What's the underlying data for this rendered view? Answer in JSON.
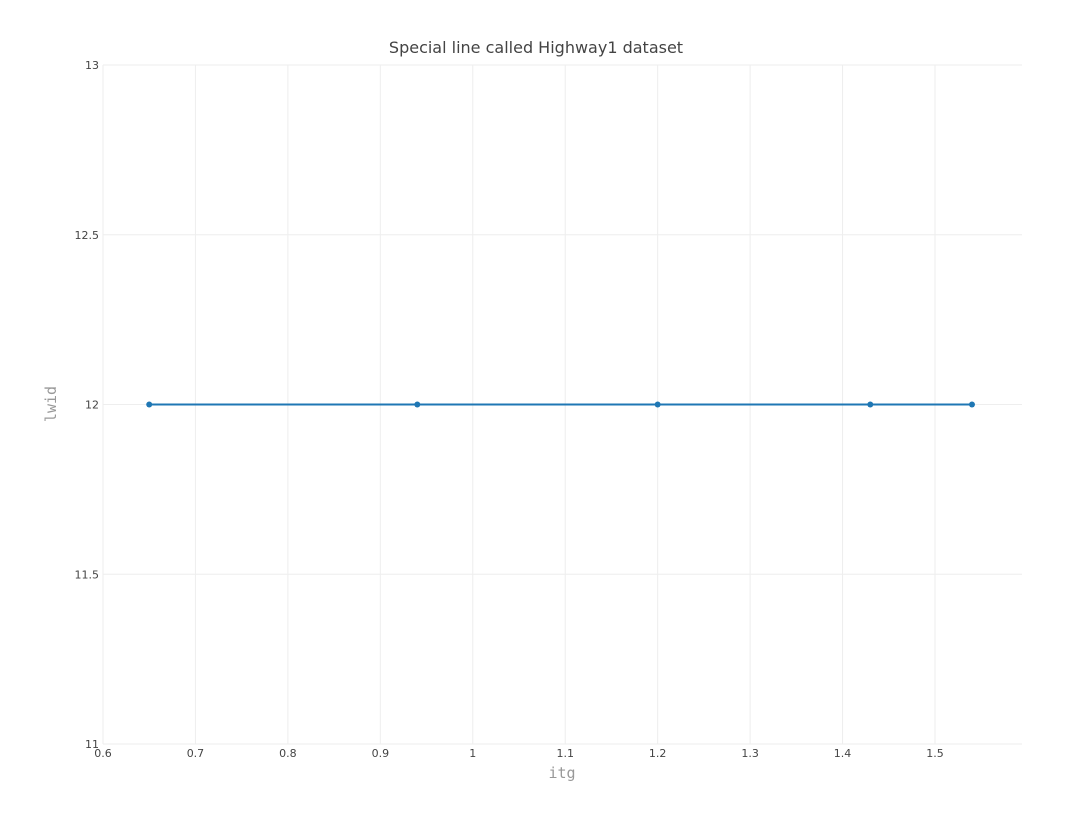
{
  "chart_data": {
    "type": "line",
    "title": "Special line called Highway1 dataset",
    "xlabel": "itg",
    "ylabel": "lwid",
    "xlim": [
      0.6,
      1.6
    ],
    "ylim": [
      11,
      13
    ],
    "x_ticks": [
      "0.6",
      "0.7",
      "0.8",
      "0.9",
      "1",
      "1.1",
      "1.2",
      "1.3",
      "1.4",
      "1.5"
    ],
    "y_ticks": [
      "11",
      "11.5",
      "12",
      "12.5",
      "13"
    ],
    "x_tick_values": [
      0.6,
      0.7,
      0.8,
      0.9,
      1.0,
      1.1,
      1.2,
      1.3,
      1.4,
      1.5
    ],
    "y_tick_values": [
      11,
      11.5,
      12,
      12.5,
      13
    ],
    "grid": true,
    "legend": "none",
    "series": [
      {
        "color": "#1f77b4",
        "x": [
          0.65,
          0.94,
          1.2,
          1.43,
          1.54,
          1.2,
          1.54
        ],
        "y": [
          12,
          12,
          12,
          12,
          12,
          12,
          12
        ],
        "markers": [
          {
            "x": 0.65,
            "y": 12
          },
          {
            "x": 0.94,
            "y": 12
          },
          {
            "x": 1.2,
            "y": 12
          },
          {
            "x": 1.43,
            "y": 12
          },
          {
            "x": 1.54,
            "y": 12
          }
        ]
      }
    ]
  }
}
